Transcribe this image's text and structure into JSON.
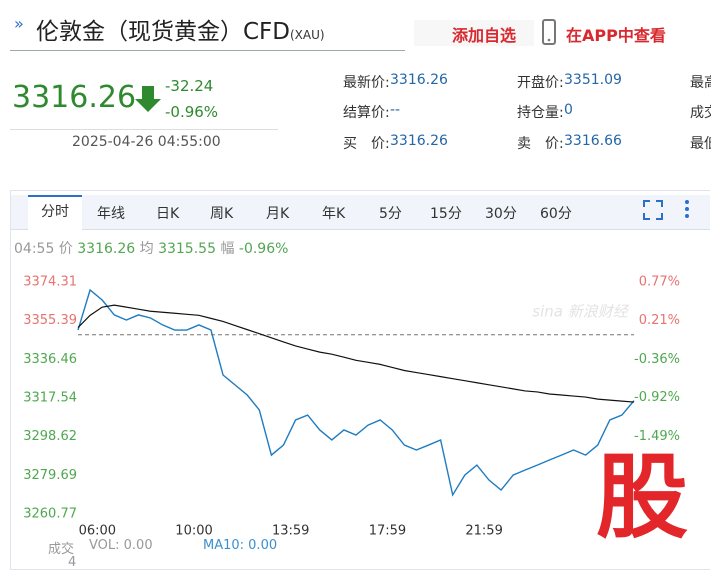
{
  "header": {
    "title": "伦敦金（现货黄金）CFD",
    "code": "(XAU)",
    "add_button": "添加自选",
    "app_button": "在APP中查看"
  },
  "quote": {
    "price": "3316.26",
    "change": "-32.24",
    "change_pct": "-0.96%",
    "datetime": "2025-04-26 04:55:00"
  },
  "info": [
    [
      {
        "label": "最新价:",
        "value": "3316.26"
      },
      {
        "label": "开盘价:",
        "value": "3351.09"
      },
      {
        "label": "最高"
      }
    ],
    [
      {
        "label": "结算价:",
        "value": "--"
      },
      {
        "label": "持仓量:",
        "value": "0"
      },
      {
        "label": "成交"
      }
    ],
    [
      {
        "label": "买　价:",
        "value": "3316.26"
      },
      {
        "label": "卖　价:",
        "value": "3316.66"
      },
      {
        "label": "最低"
      }
    ]
  ],
  "tabs": [
    "分时",
    "年线",
    "日K",
    "周K",
    "月K",
    "年K",
    "5分",
    "15分",
    "30分",
    "60分"
  ],
  "status": {
    "time": "04:55",
    "price_label": "价",
    "price": "3316.26",
    "avg_label": "均",
    "avg": "3315.55",
    "pct_label": "幅",
    "pct": "-0.96%"
  },
  "chart_data": {
    "type": "line",
    "series": [
      {
        "name": "价",
        "color": "#1f7cc1",
        "values": [
          3350.8,
          3370.4,
          3365.5,
          3358.2,
          3355.7,
          3358.2,
          3356.7,
          3353.3,
          3350.8,
          3350.8,
          3353.3,
          3350.8,
          3328.8,
          3323.9,
          3319.0,
          3311.7,
          3289.6,
          3294.5,
          3306.8,
          3309.2,
          3301.9,
          3297.0,
          3301.9,
          3299.4,
          3304.3,
          3306.8,
          3301.9,
          3294.5,
          3292.1,
          3294.5,
          3297.0,
          3270.1,
          3279.8,
          3284.7,
          3277.4,
          3272.5,
          3279.8,
          3282.3,
          3284.7,
          3287.2,
          3289.6,
          3292.1,
          3289.6,
          3294.5,
          3306.8,
          3309.2,
          3316.26
        ]
      },
      {
        "name": "均",
        "color": "#111111",
        "values": [
          3352,
          3358,
          3362,
          3363,
          3362,
          3361,
          3360,
          3359.5,
          3359,
          3358.5,
          3358,
          3356.5,
          3355,
          3353,
          3351,
          3349,
          3347,
          3345,
          3343,
          3341.5,
          3340,
          3339,
          3337.5,
          3336,
          3335,
          3334,
          3332.5,
          3331,
          3330,
          3329,
          3328,
          3327,
          3326,
          3325,
          3324,
          3323,
          3322,
          3321,
          3320.5,
          3319.5,
          3319,
          3318.5,
          3318,
          3317,
          3316.5,
          3316,
          3315.55
        ]
      }
    ],
    "baseline": 3348.5,
    "xlim": [
      0,
      46
    ],
    "xticks": [
      {
        "value": 1.6,
        "label": "06:00"
      },
      {
        "value": 9.6,
        "label": "10:00"
      },
      {
        "value": 17.6,
        "label": "13:59"
      },
      {
        "value": 25.6,
        "label": "17:59"
      },
      {
        "value": 33.6,
        "label": "21:59"
      }
    ],
    "ylim": [
      3260.77,
      3374.31
    ],
    "yticks": [
      3374.31,
      3355.39,
      3336.46,
      3317.54,
      3298.62,
      3279.69,
      3260.77
    ],
    "y2lim": [
      -2.62,
      0.77
    ],
    "y2ticks": [
      {
        "value": 0.77,
        "label": "0.77%"
      },
      {
        "value": 0.21,
        "label": "0.21%"
      },
      {
        "value": -0.36,
        "label": "-0.36%"
      },
      {
        "value": -0.92,
        "label": "-0.92%"
      },
      {
        "value": -1.49,
        "label": "-1.49%"
      }
    ],
    "up_color": "#e8736f",
    "down_color": "#4fa84f",
    "grid": false,
    "watermark": "sina 新浪财经"
  },
  "volume": {
    "label": "成交",
    "label2": "4",
    "vol": "VOL: 0.00",
    "ma10": "MA10: 0.00"
  },
  "logo": "股"
}
